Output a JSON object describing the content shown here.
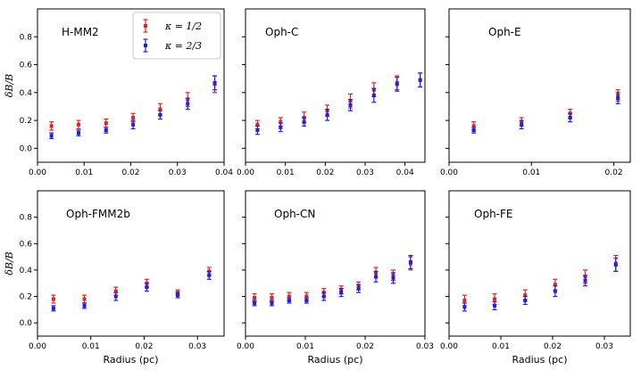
{
  "figure": {
    "ylabel": "δB/B",
    "xlabel": "Radius (pc)",
    "legend": [
      {
        "label": "κ = 1/2",
        "color": "#e8221a"
      },
      {
        "label": "κ = 2/3",
        "color": "#1f1fe6"
      }
    ],
    "legend_location": "top-right of first panel"
  },
  "chart_data": [
    {
      "type": "scatter",
      "title": "H-MM2",
      "xlabel": "",
      "ylabel": "δB/B",
      "xlim": [
        0.0,
        0.04
      ],
      "ylim": [
        -0.1,
        1.0
      ],
      "xticks": [
        0.0,
        0.01,
        0.02,
        0.03,
        0.04
      ],
      "xtick_labels": [
        "0.00",
        "0.01",
        "0.02",
        "0.03",
        "0.04"
      ],
      "yticks": [
        0.0,
        0.2,
        0.4,
        0.6,
        0.8
      ],
      "ytick_labels": [
        "0.0",
        "0.2",
        "0.4",
        "0.6",
        "0.8"
      ],
      "series": [
        {
          "name": "κ = 1/2",
          "x": [
            0.003,
            0.0088,
            0.0147,
            0.0205,
            0.0263,
            0.0322,
            0.038
          ],
          "y": [
            0.16,
            0.17,
            0.18,
            0.22,
            0.28,
            0.35,
            0.46
          ],
          "err": [
            0.03,
            0.03,
            0.03,
            0.03,
            0.04,
            0.05,
            0.06
          ]
        },
        {
          "name": "κ = 2/3",
          "x": [
            0.003,
            0.0088,
            0.0147,
            0.0205,
            0.0263,
            0.0322,
            0.038
          ],
          "y": [
            0.09,
            0.11,
            0.13,
            0.17,
            0.24,
            0.32,
            0.47
          ],
          "err": [
            0.02,
            0.02,
            0.02,
            0.03,
            0.03,
            0.04,
            0.05
          ]
        }
      ]
    },
    {
      "type": "scatter",
      "title": "Oph-C",
      "xlabel": "",
      "ylabel": "",
      "xlim": [
        0.0,
        0.045
      ],
      "ylim": [
        -0.1,
        1.0
      ],
      "xticks": [
        0.0,
        0.01,
        0.02,
        0.03,
        0.04
      ],
      "xtick_labels": [
        "0.00",
        "0.01",
        "0.02",
        "0.03",
        "0.04"
      ],
      "yticks": [
        0.0,
        0.2,
        0.4,
        0.6,
        0.8
      ],
      "ytick_labels": [],
      "series": [
        {
          "name": "κ = 1/2",
          "x": [
            0.003,
            0.0088,
            0.0147,
            0.0205,
            0.0263,
            0.0322,
            0.038,
            0.0438
          ],
          "y": [
            0.17,
            0.19,
            0.22,
            0.27,
            0.34,
            0.42,
            0.47,
            0.49
          ],
          "err": [
            0.03,
            0.03,
            0.04,
            0.04,
            0.05,
            0.05,
            0.05,
            0.05
          ]
        },
        {
          "name": "κ = 2/3",
          "x": [
            0.003,
            0.0088,
            0.0147,
            0.0205,
            0.0263,
            0.0322,
            0.038,
            0.0438
          ],
          "y": [
            0.13,
            0.15,
            0.19,
            0.24,
            0.31,
            0.38,
            0.46,
            0.49
          ],
          "err": [
            0.03,
            0.03,
            0.03,
            0.04,
            0.04,
            0.05,
            0.05,
            0.05
          ]
        }
      ]
    },
    {
      "type": "scatter",
      "title": "Oph-E",
      "xlabel": "",
      "ylabel": "",
      "xlim": [
        0.0,
        0.022
      ],
      "ylim": [
        -0.1,
        1.0
      ],
      "xticks": [
        0.0,
        0.01,
        0.02
      ],
      "xtick_labels": [
        "0.00",
        "0.01",
        "0.02"
      ],
      "yticks": [
        0.0,
        0.2,
        0.4,
        0.6,
        0.8
      ],
      "ytick_labels": [],
      "series": [
        {
          "name": "κ = 1/2",
          "x": [
            0.003,
            0.0088,
            0.0147,
            0.0205
          ],
          "y": [
            0.16,
            0.19,
            0.25,
            0.38
          ],
          "err": [
            0.03,
            0.03,
            0.03,
            0.04
          ]
        },
        {
          "name": "κ = 2/3",
          "x": [
            0.003,
            0.0088,
            0.0147,
            0.0205
          ],
          "y": [
            0.13,
            0.17,
            0.22,
            0.36
          ],
          "err": [
            0.02,
            0.03,
            0.03,
            0.04
          ]
        }
      ]
    },
    {
      "type": "scatter",
      "title": "Oph-FMM2b",
      "xlabel": "Radius (pc)",
      "ylabel": "δB/B",
      "xlim": [
        0.0,
        0.035
      ],
      "ylim": [
        -0.1,
        1.0
      ],
      "xticks": [
        0.0,
        0.01,
        0.02,
        0.03
      ],
      "xtick_labels": [
        "0.00",
        "0.01",
        "0.02",
        "0.03"
      ],
      "yticks": [
        0.0,
        0.2,
        0.4,
        0.6,
        0.8
      ],
      "ytick_labels": [
        "0.0",
        "0.2",
        "0.4",
        "0.6",
        "0.8"
      ],
      "series": [
        {
          "name": "κ = 1/2",
          "x": [
            0.003,
            0.0088,
            0.0147,
            0.0205,
            0.0263,
            0.0322
          ],
          "y": [
            0.18,
            0.18,
            0.24,
            0.3,
            0.23,
            0.39
          ],
          "err": [
            0.03,
            0.03,
            0.03,
            0.03,
            0.02,
            0.03
          ]
        },
        {
          "name": "κ = 2/3",
          "x": [
            0.003,
            0.0088,
            0.0147,
            0.0205,
            0.0263,
            0.0322
          ],
          "y": [
            0.11,
            0.13,
            0.2,
            0.27,
            0.21,
            0.36
          ],
          "err": [
            0.02,
            0.02,
            0.03,
            0.03,
            0.02,
            0.03
          ]
        }
      ]
    },
    {
      "type": "scatter",
      "title": "Oph-CN",
      "xlabel": "Radius (pc)",
      "ylabel": "",
      "xlim": [
        0.0,
        0.03
      ],
      "ylim": [
        -0.1,
        1.0
      ],
      "xticks": [
        0.0,
        0.01,
        0.02,
        0.03
      ],
      "xtick_labels": [
        "0.00",
        "0.01",
        "0.02",
        "0.03"
      ],
      "yticks": [
        0.0,
        0.2,
        0.4,
        0.6,
        0.8
      ],
      "ytick_labels": [],
      "series": [
        {
          "name": "κ = 1/2",
          "x": [
            0.0015,
            0.0044,
            0.0073,
            0.0102,
            0.0131,
            0.016,
            0.0189,
            0.0218,
            0.0247,
            0.0276
          ],
          "y": [
            0.19,
            0.19,
            0.2,
            0.2,
            0.23,
            0.25,
            0.28,
            0.38,
            0.36,
            0.45
          ],
          "err": [
            0.03,
            0.03,
            0.03,
            0.03,
            0.03,
            0.03,
            0.03,
            0.04,
            0.04,
            0.05
          ]
        },
        {
          "name": "κ = 2/3",
          "x": [
            0.0015,
            0.0044,
            0.0073,
            0.0102,
            0.0131,
            0.016,
            0.0189,
            0.0218,
            0.0247,
            0.0276
          ],
          "y": [
            0.15,
            0.15,
            0.17,
            0.17,
            0.2,
            0.23,
            0.26,
            0.35,
            0.34,
            0.46
          ],
          "err": [
            0.02,
            0.02,
            0.02,
            0.02,
            0.03,
            0.03,
            0.03,
            0.04,
            0.04,
            0.05
          ]
        }
      ]
    },
    {
      "type": "scatter",
      "title": "Oph-FE",
      "xlabel": "Radius (pc)",
      "ylabel": "",
      "xlim": [
        0.0,
        0.035
      ],
      "ylim": [
        -0.1,
        1.0
      ],
      "xticks": [
        0.0,
        0.01,
        0.02,
        0.03
      ],
      "xtick_labels": [
        "0.00",
        "0.01",
        "0.02",
        "0.03"
      ],
      "yticks": [
        0.0,
        0.2,
        0.4,
        0.6,
        0.8
      ],
      "ytick_labels": [],
      "series": [
        {
          "name": "κ = 1/2",
          "x": [
            0.003,
            0.0088,
            0.0147,
            0.0205,
            0.0263,
            0.0322
          ],
          "y": [
            0.17,
            0.18,
            0.21,
            0.29,
            0.35,
            0.45
          ],
          "err": [
            0.04,
            0.04,
            0.04,
            0.04,
            0.05,
            0.06
          ]
        },
        {
          "name": "κ = 2/3",
          "x": [
            0.003,
            0.0088,
            0.0147,
            0.0205,
            0.0263,
            0.0322
          ],
          "y": [
            0.12,
            0.13,
            0.17,
            0.24,
            0.32,
            0.44
          ],
          "err": [
            0.03,
            0.03,
            0.03,
            0.04,
            0.04,
            0.05
          ]
        }
      ]
    }
  ]
}
